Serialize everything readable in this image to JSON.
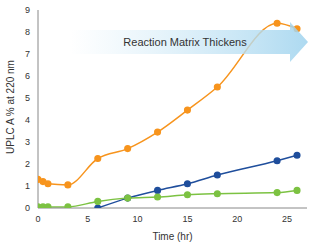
{
  "chart_data": {
    "type": "line",
    "annotation": "Reaction Matrix Thickens",
    "x_label": "Time (hr)",
    "y_label": "UPLC A % at 220 nm",
    "x": [
      0,
      0.5,
      1,
      3,
      6,
      9,
      12,
      15,
      18,
      24,
      26
    ],
    "series": [
      {
        "color": "#f7941d",
        "values": [
          1.3,
          1.2,
          1.1,
          1.05,
          2.25,
          2.7,
          3.45,
          4.45,
          5.5,
          8.4,
          8.15
        ]
      },
      {
        "color": "#1f4e9c",
        "values": [
          null,
          null,
          null,
          null,
          0,
          0.45,
          0.8,
          1.1,
          1.5,
          2.15,
          2.4
        ]
      },
      {
        "color": "#7cc242",
        "values": [
          0.05,
          0.05,
          0.05,
          0.05,
          0.3,
          0.45,
          0.5,
          0.6,
          0.65,
          0.7,
          0.8
        ]
      }
    ],
    "xlim": [
      0,
      27
    ],
    "xticks": [
      0,
      5,
      10,
      15,
      20,
      25
    ],
    "ylim": [
      0,
      9
    ],
    "yticks": [
      0,
      1,
      2,
      3,
      4,
      5,
      6,
      7,
      8,
      9
    ],
    "marker": "circle",
    "line_style": "smooth"
  }
}
